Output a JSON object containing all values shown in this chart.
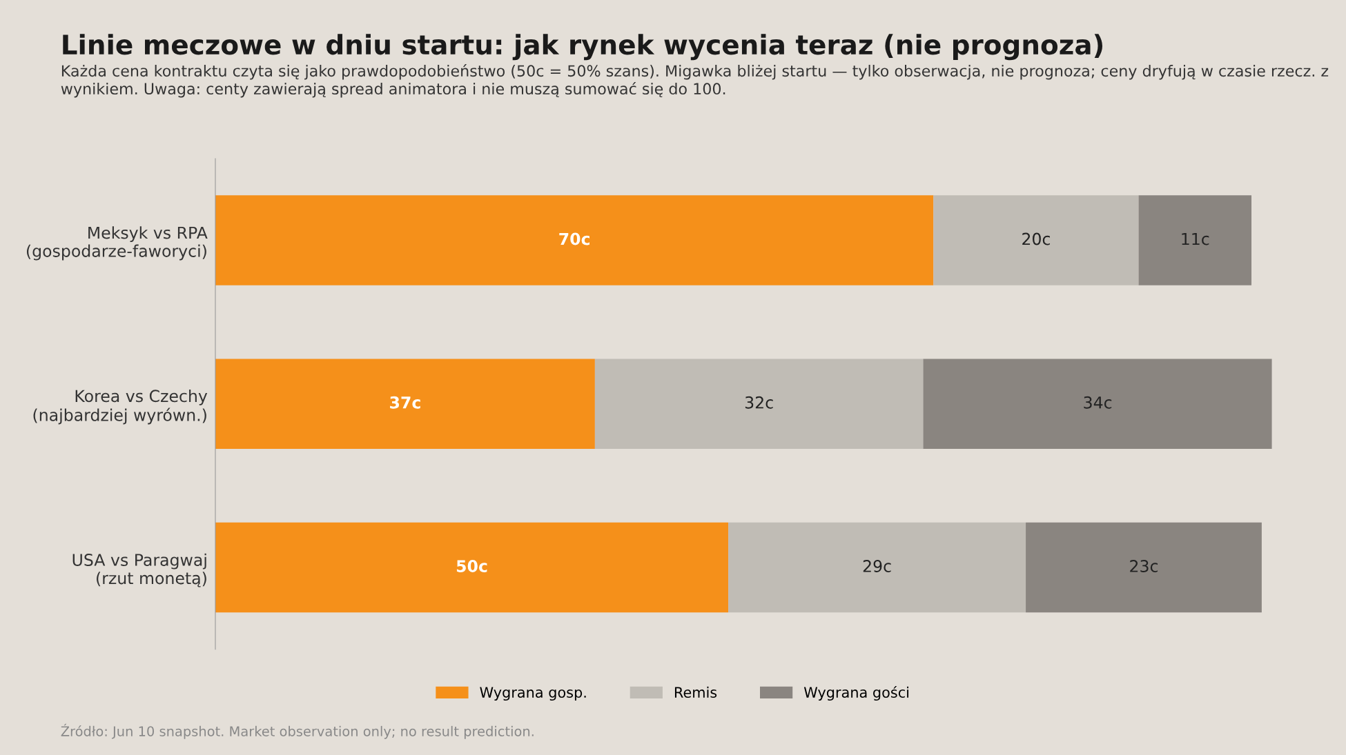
{
  "chart_data": {
    "type": "bar",
    "orientation": "horizontal",
    "stacked": true,
    "title": "Linie meczowe w dniu startu: jak rynek wycenia teraz (nie prognoza)",
    "subtitle": "Każda cena kontraktu czyta się jako prawdopodobieństwo (50c = 50% szans). Migawka bliżej startu — tylko obserwacja, nie prognoza; ceny dryfują w czasie rzecz. z wynikiem. Uwaga: centy zawierają spread animatora i nie muszą sumować się do 100.",
    "categories": [
      "Meksyk vs RPA\n(gospodarze-faworyci)",
      "Korea vs Czechy\n(najbardziej wyrówn.)",
      "USA vs Paragwaj\n(rzut monetą)"
    ],
    "series": [
      {
        "name": "Wygrana gosp.",
        "color": "#f5901a",
        "values": [
          70,
          37,
          50
        ],
        "value_labels": [
          "70c",
          "37c",
          "50c"
        ]
      },
      {
        "name": "Remis",
        "color": "#c0bcb5",
        "values": [
          20,
          32,
          29
        ],
        "value_labels": [
          "20c",
          "32c",
          "29c"
        ]
      },
      {
        "name": "Wygrana gości",
        "color": "#8a8580",
        "values": [
          11,
          34,
          23
        ],
        "value_labels": [
          "11c",
          "34c",
          "23c"
        ]
      }
    ],
    "legend": "bottom",
    "tick_labels": "y",
    "grid": false,
    "annotations": [
      "Źródło: Jun 10 snapshot. Market observation only; no result prediction."
    ]
  }
}
